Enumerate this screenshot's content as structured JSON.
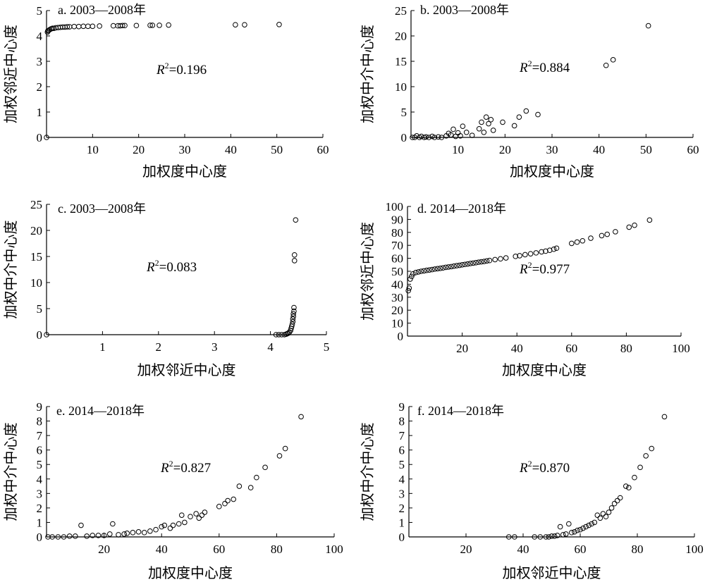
{
  "chart_data": [
    {
      "type": "scatter",
      "title": "a. 2003—2008年",
      "xlabel": "加权度中心度",
      "ylabel": "加权邻近中心度",
      "xlim": [
        0,
        60
      ],
      "ylim": [
        0,
        5
      ],
      "xticks": [
        "10",
        "20",
        "30",
        "40",
        "50",
        "60"
      ],
      "yticks": [
        "0",
        "1",
        "2",
        "3",
        "4",
        "5"
      ],
      "r2_prefix": "R",
      "r2_value": "=0.196",
      "points": [
        [
          0,
          0
        ],
        [
          0.2,
          4.15
        ],
        [
          0.3,
          4.2
        ],
        [
          0.5,
          4.22
        ],
        [
          0.7,
          4.25
        ],
        [
          1.0,
          4.28
        ],
        [
          1.3,
          4.3
        ],
        [
          1.6,
          4.3
        ],
        [
          2.0,
          4.32
        ],
        [
          2.5,
          4.33
        ],
        [
          3.0,
          4.34
        ],
        [
          3.5,
          4.35
        ],
        [
          4.0,
          4.35
        ],
        [
          4.5,
          4.36
        ],
        [
          5.0,
          4.36
        ],
        [
          6.0,
          4.37
        ],
        [
          7.0,
          4.37
        ],
        [
          8.0,
          4.38
        ],
        [
          9.0,
          4.38
        ],
        [
          10.0,
          4.38
        ],
        [
          11.5,
          4.39
        ],
        [
          14.5,
          4.4
        ],
        [
          15.5,
          4.4
        ],
        [
          16.0,
          4.4
        ],
        [
          16.5,
          4.41
        ],
        [
          17.0,
          4.41
        ],
        [
          19.5,
          4.41
        ],
        [
          22.5,
          4.42
        ],
        [
          23.0,
          4.42
        ],
        [
          24.5,
          4.42
        ],
        [
          26.5,
          4.43
        ],
        [
          41.0,
          4.44
        ],
        [
          43.0,
          4.44
        ],
        [
          50.5,
          4.45
        ]
      ]
    },
    {
      "type": "scatter",
      "title": "b. 2003—2008年",
      "xlabel": "加权度中心度",
      "ylabel": "加权中介中心度",
      "xlim": [
        0,
        60
      ],
      "ylim": [
        0,
        25
      ],
      "xticks": [
        "10",
        "20",
        "30",
        "40",
        "50",
        "60"
      ],
      "yticks": [
        "0",
        "5",
        "10",
        "15",
        "20",
        "25"
      ],
      "r2_prefix": "R",
      "r2_value": "=0.884",
      "points": [
        [
          0.3,
          0
        ],
        [
          0.8,
          0
        ],
        [
          1.2,
          0.3
        ],
        [
          1.8,
          0
        ],
        [
          2.2,
          0.2
        ],
        [
          2.8,
          0
        ],
        [
          3.2,
          0.1
        ],
        [
          3.8,
          0
        ],
        [
          4.5,
          0.2
        ],
        [
          5.0,
          0
        ],
        [
          5.8,
          0.1
        ],
        [
          6.5,
          0
        ],
        [
          7.5,
          0.3
        ],
        [
          8.0,
          0.8
        ],
        [
          8.5,
          0.5
        ],
        [
          9.0,
          1.6
        ],
        [
          9.5,
          0.2
        ],
        [
          10.0,
          0.9
        ],
        [
          10.5,
          0.3
        ],
        [
          11.0,
          2.2
        ],
        [
          11.8,
          1.0
        ],
        [
          13.0,
          0.4
        ],
        [
          14.5,
          1.7
        ],
        [
          15.0,
          3.0
        ],
        [
          15.5,
          1.0
        ],
        [
          16.0,
          4.0
        ],
        [
          16.5,
          2.7
        ],
        [
          17.0,
          3.5
        ],
        [
          17.5,
          1.4
        ],
        [
          19.5,
          3.0
        ],
        [
          22.0,
          2.3
        ],
        [
          23.0,
          4.0
        ],
        [
          24.5,
          5.2
        ],
        [
          27.0,
          4.5
        ],
        [
          41.5,
          14.2
        ],
        [
          43.0,
          15.3
        ],
        [
          50.5,
          22.0
        ]
      ]
    },
    {
      "type": "scatter",
      "title": "c. 2003—2008年",
      "xlabel": "加权邻近中心度",
      "ylabel": "加权中介中心度",
      "xlim": [
        0,
        5
      ],
      "ylim": [
        0,
        25
      ],
      "xticks": [
        "1",
        "2",
        "3",
        "4",
        "5"
      ],
      "yticks": [
        "0",
        "5",
        "10",
        "15",
        "20",
        "25"
      ],
      "r2_prefix": "R",
      "r2_value": "=0.083",
      "points": [
        [
          0,
          0
        ],
        [
          4.1,
          0
        ],
        [
          4.15,
          0
        ],
        [
          4.2,
          0
        ],
        [
          4.25,
          0
        ],
        [
          4.28,
          0.1
        ],
        [
          4.3,
          0.2
        ],
        [
          4.32,
          0.3
        ],
        [
          4.34,
          0.5
        ],
        [
          4.36,
          0.8
        ],
        [
          4.37,
          1.2
        ],
        [
          4.38,
          1.6
        ],
        [
          4.39,
          2.0
        ],
        [
          4.4,
          2.5
        ],
        [
          4.4,
          3.0
        ],
        [
          4.41,
          3.5
        ],
        [
          4.41,
          4.0
        ],
        [
          4.42,
          4.5
        ],
        [
          4.42,
          5.2
        ],
        [
          4.43,
          14.2
        ],
        [
          4.43,
          15.3
        ],
        [
          4.45,
          22.0
        ]
      ]
    },
    {
      "type": "scatter",
      "title": "d. 2014—2018年",
      "xlabel": "加权度中心度",
      "ylabel": "加权邻近中心度",
      "xlim": [
        0,
        100
      ],
      "ylim": [
        0,
        100
      ],
      "xticks": [
        "20",
        "40",
        "60",
        "80",
        "100"
      ],
      "yticks": [
        "0",
        "10",
        "20",
        "30",
        "40",
        "50",
        "60",
        "70",
        "80",
        "90",
        "100"
      ],
      "r2_prefix": "R",
      "r2_value": "=0.977",
      "points": [
        [
          0.3,
          35
        ],
        [
          0.6,
          37
        ],
        [
          1.0,
          44
        ],
        [
          1.5,
          46
        ],
        [
          2.0,
          48
        ],
        [
          3.0,
          49
        ],
        [
          4.0,
          49.5
        ],
        [
          5.0,
          50
        ],
        [
          6.0,
          50.3
        ],
        [
          7.0,
          50.7
        ],
        [
          8.0,
          51
        ],
        [
          9.0,
          51.3
        ],
        [
          10.0,
          51.7
        ],
        [
          11.0,
          52
        ],
        [
          12.0,
          52.3
        ],
        [
          13.0,
          52.6
        ],
        [
          14.0,
          53
        ],
        [
          15.0,
          53.3
        ],
        [
          16.0,
          53.6
        ],
        [
          17.0,
          54
        ],
        [
          18.0,
          54.3
        ],
        [
          19.0,
          54.6
        ],
        [
          20.0,
          55
        ],
        [
          21.0,
          55.3
        ],
        [
          22.0,
          55.6
        ],
        [
          23.0,
          56
        ],
        [
          24.0,
          56.3
        ],
        [
          25.0,
          56.6
        ],
        [
          26.0,
          57
        ],
        [
          27.0,
          57.3
        ],
        [
          28.0,
          57.6
        ],
        [
          29.0,
          58
        ],
        [
          30.0,
          58.3
        ],
        [
          32.0,
          59
        ],
        [
          34.0,
          59.6
        ],
        [
          36.0,
          60.3
        ],
        [
          39.5,
          61.5
        ],
        [
          41.0,
          62
        ],
        [
          43.0,
          62.8
        ],
        [
          45.0,
          63.5
        ],
        [
          47.0,
          64.2
        ],
        [
          49.0,
          65
        ],
        [
          50.5,
          65.5
        ],
        [
          52.0,
          66.2
        ],
        [
          53.5,
          67
        ],
        [
          54.5,
          67.8
        ],
        [
          60.0,
          71.5
        ],
        [
          62.0,
          72.5
        ],
        [
          64.0,
          73.5
        ],
        [
          67.0,
          75.5
        ],
        [
          71.0,
          77.5
        ],
        [
          73.0,
          78.5
        ],
        [
          76.0,
          80.5
        ],
        [
          81.0,
          84
        ],
        [
          83.0,
          85.5
        ],
        [
          88.5,
          89.5
        ]
      ]
    },
    {
      "type": "scatter",
      "title": "e. 2014—2018年",
      "xlabel": "加权度中心度",
      "ylabel": "加权中介中心度",
      "xlim": [
        0,
        100
      ],
      "ylim": [
        0,
        9
      ],
      "xticks": [
        "20",
        "40",
        "60",
        "80",
        "100"
      ],
      "yticks": [
        "0",
        "1",
        "2",
        "3",
        "4",
        "5",
        "6",
        "7",
        "8",
        "9"
      ],
      "r2_prefix": "R",
      "r2_value": "=0.827",
      "points": [
        [
          0.5,
          0
        ],
        [
          2.0,
          0
        ],
        [
          4.0,
          0
        ],
        [
          6.0,
          0
        ],
        [
          8.0,
          0.05
        ],
        [
          10.0,
          0.05
        ],
        [
          12.0,
          0.8
        ],
        [
          14.0,
          0.05
        ],
        [
          16.0,
          0.1
        ],
        [
          18.0,
          0.1
        ],
        [
          20.0,
          0.1
        ],
        [
          22.0,
          0.2
        ],
        [
          23.0,
          0.9
        ],
        [
          25.0,
          0.15
        ],
        [
          27.0,
          0.2
        ],
        [
          28.0,
          0.25
        ],
        [
          30.0,
          0.3
        ],
        [
          32.0,
          0.35
        ],
        [
          34.0,
          0.3
        ],
        [
          36.0,
          0.4
        ],
        [
          38.0,
          0.5
        ],
        [
          40.0,
          0.7
        ],
        [
          41.0,
          0.8
        ],
        [
          43.0,
          0.6
        ],
        [
          44.0,
          0.8
        ],
        [
          46.0,
          0.9
        ],
        [
          47.0,
          1.5
        ],
        [
          48.0,
          1.0
        ],
        [
          50.0,
          1.4
        ],
        [
          52.0,
          1.6
        ],
        [
          53.0,
          1.3
        ],
        [
          54.0,
          1.5
        ],
        [
          55.0,
          1.7
        ],
        [
          60.0,
          2.1
        ],
        [
          62.0,
          2.3
        ],
        [
          63.0,
          2.5
        ],
        [
          65.0,
          2.6
        ],
        [
          67.0,
          3.5
        ],
        [
          71.0,
          3.4
        ],
        [
          73.0,
          4.1
        ],
        [
          76.0,
          4.8
        ],
        [
          81.0,
          5.6
        ],
        [
          83.0,
          6.1
        ],
        [
          88.5,
          8.3
        ]
      ]
    },
    {
      "type": "scatter",
      "title": "f. 2014—2018年",
      "xlabel": "加权邻近中心度",
      "ylabel": "加权中介中心度",
      "xlim": [
        0,
        100
      ],
      "ylim": [
        0,
        9
      ],
      "xticks": [
        "20",
        "40",
        "60",
        "80",
        "100"
      ],
      "yticks": [
        "0",
        "1",
        "2",
        "3",
        "4",
        "5",
        "6",
        "7",
        "8",
        "9"
      ],
      "r2_prefix": "R",
      "r2_value": "=0.870",
      "points": [
        [
          35.0,
          0
        ],
        [
          37.0,
          0
        ],
        [
          44.0,
          0
        ],
        [
          46.0,
          0
        ],
        [
          48.0,
          0
        ],
        [
          49.0,
          0
        ],
        [
          50.0,
          0.05
        ],
        [
          51.0,
          0.05
        ],
        [
          52.0,
          0.1
        ],
        [
          53.0,
          0.7
        ],
        [
          54.0,
          0.15
        ],
        [
          55.0,
          0.2
        ],
        [
          56.0,
          0.9
        ],
        [
          57.0,
          0.3
        ],
        [
          58.0,
          0.35
        ],
        [
          59.0,
          0.45
        ],
        [
          60.0,
          0.5
        ],
        [
          61.0,
          0.6
        ],
        [
          62.0,
          0.7
        ],
        [
          63.0,
          0.8
        ],
        [
          64.0,
          0.9
        ],
        [
          65.0,
          1.0
        ],
        [
          66.0,
          1.5
        ],
        [
          67.0,
          1.3
        ],
        [
          68.0,
          1.6
        ],
        [
          69.0,
          1.4
        ],
        [
          70.0,
          1.7
        ],
        [
          71.0,
          2.0
        ],
        [
          72.0,
          2.3
        ],
        [
          73.0,
          2.5
        ],
        [
          74.0,
          2.7
        ],
        [
          76.0,
          3.5
        ],
        [
          77.0,
          3.4
        ],
        [
          79.0,
          4.1
        ],
        [
          81.0,
          4.8
        ],
        [
          83.0,
          5.6
        ],
        [
          85.0,
          6.1
        ],
        [
          89.5,
          8.3
        ]
      ]
    }
  ]
}
